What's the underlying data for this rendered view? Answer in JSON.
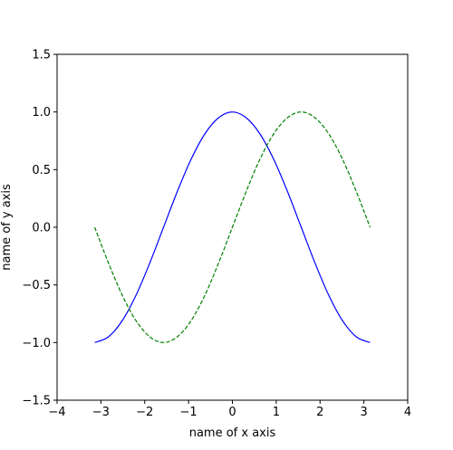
{
  "chart_data": {
    "type": "line",
    "title": "",
    "xlabel": "name of x axis",
    "ylabel": "name of y axis",
    "xlim": [
      -4,
      4
    ],
    "ylim": [
      -1.5,
      1.5
    ],
    "xticks": [
      -4,
      -3,
      -2,
      -1,
      0,
      1,
      2,
      3,
      4
    ],
    "xtick_labels": [
      "−4",
      "−3",
      "−2",
      "−1",
      "0",
      "1",
      "2",
      "3",
      "4"
    ],
    "yticks": [
      -1.5,
      -1.0,
      -0.5,
      0.0,
      0.5,
      1.0,
      1.5
    ],
    "ytick_labels": [
      "−1.5",
      "−1.0",
      "−0.5",
      "0.0",
      "0.5",
      "1.0",
      "1.5"
    ],
    "grid": false,
    "series": [
      {
        "style": "solid",
        "color": "#0000ff",
        "x": [
          -3.142,
          -2.827,
          -2.513,
          -2.199,
          -1.885,
          -1.571,
          -1.257,
          -0.942,
          -0.628,
          -0.314,
          0,
          0.314,
          0.628,
          0.942,
          1.257,
          1.571,
          1.885,
          2.199,
          2.513,
          2.827,
          3.142
        ],
        "y": [
          -1.0,
          -0.95,
          -0.81,
          -0.59,
          -0.31,
          0.0,
          0.31,
          0.59,
          0.81,
          0.95,
          1.0,
          0.95,
          0.81,
          0.59,
          0.31,
          0.0,
          -0.31,
          -0.59,
          -0.81,
          -0.95,
          -1.0
        ]
      },
      {
        "style": "dashed",
        "color": "#008000",
        "x": [
          -3.142,
          -2.827,
          -2.513,
          -2.199,
          -1.885,
          -1.571,
          -1.257,
          -0.942,
          -0.628,
          -0.314,
          0,
          0.314,
          0.628,
          0.942,
          1.257,
          1.571,
          1.885,
          2.199,
          2.513,
          2.827,
          3.142
        ],
        "y": [
          0.0,
          -0.31,
          -0.59,
          -0.81,
          -0.95,
          -1.0,
          -0.95,
          -0.81,
          -0.59,
          -0.31,
          0.0,
          0.31,
          0.59,
          0.81,
          0.95,
          1.0,
          0.95,
          0.81,
          0.59,
          0.31,
          0.0
        ]
      }
    ]
  }
}
